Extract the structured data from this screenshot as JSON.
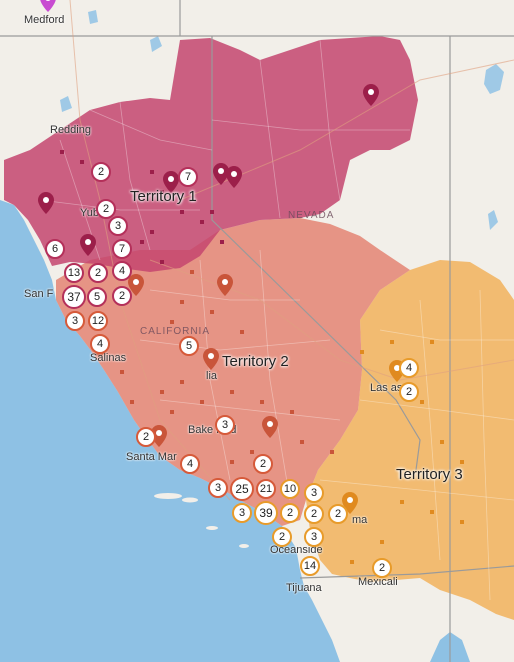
{
  "map": {
    "cities": [
      {
        "id": "medford",
        "label": "Medford"
      },
      {
        "id": "redding",
        "label": "Redding"
      },
      {
        "id": "yuba",
        "label": "Yub"
      },
      {
        "id": "sf",
        "label": "San F"
      },
      {
        "id": "salinas",
        "label": "Salinas"
      },
      {
        "id": "visalia",
        "label": "lia"
      },
      {
        "id": "bakersfield",
        "label": "Bake   field"
      },
      {
        "id": "santamaria",
        "label": "Santa Mar"
      },
      {
        "id": "lasvegas",
        "label": "Las    as"
      },
      {
        "id": "oceanside",
        "label": "Oceanside"
      },
      {
        "id": "tijuana",
        "label": "Tijuana"
      },
      {
        "id": "mexicali",
        "label": "Mexicali"
      },
      {
        "id": "yuma",
        "label": "ma"
      }
    ],
    "states": [
      {
        "id": "nevada",
        "label": "NEVADA"
      },
      {
        "id": "california",
        "label": "CALIFORNIA"
      }
    ],
    "territories": [
      {
        "id": "t1",
        "label": "Territory 1",
        "color": "#c4456f"
      },
      {
        "id": "t2",
        "label": "Territory 2",
        "color": "#e27d6c"
      },
      {
        "id": "t3",
        "label": "Territory 3",
        "color": "#f2b25c"
      }
    ],
    "clusters": [
      {
        "count": "2",
        "t": 1
      },
      {
        "count": "7",
        "t": 1
      },
      {
        "count": "2",
        "t": 1
      },
      {
        "count": "3",
        "t": 1
      },
      {
        "count": "6",
        "t": 1
      },
      {
        "count": "7",
        "t": 1
      },
      {
        "count": "13",
        "t": 1
      },
      {
        "count": "2",
        "t": 1
      },
      {
        "count": "4",
        "t": 1
      },
      {
        "count": "37",
        "t": 1
      },
      {
        "count": "5",
        "t": 1
      },
      {
        "count": "2",
        "t": 1
      },
      {
        "count": "3",
        "t": 2
      },
      {
        "count": "12",
        "t": 2
      },
      {
        "count": "4",
        "t": 2
      },
      {
        "count": "5",
        "t": 2
      },
      {
        "count": "3",
        "t": 2
      },
      {
        "count": "2",
        "t": 2
      },
      {
        "count": "4",
        "t": 2
      },
      {
        "count": "2",
        "t": 2
      },
      {
        "count": "3",
        "t": 2
      },
      {
        "count": "25",
        "t": 2
      },
      {
        "count": "21",
        "t": 2
      },
      {
        "count": "10",
        "t": 3
      },
      {
        "count": "3",
        "t": 3
      },
      {
        "count": "3",
        "t": 3
      },
      {
        "count": "39",
        "t": 3
      },
      {
        "count": "2",
        "t": 3
      },
      {
        "count": "2",
        "t": 3
      },
      {
        "count": "2",
        "t": 3
      },
      {
        "count": "3",
        "t": 3
      },
      {
        "count": "2",
        "t": 3
      },
      {
        "count": "14",
        "t": 3
      },
      {
        "count": "2",
        "t": 3
      },
      {
        "count": "4",
        "t": 3
      },
      {
        "count": "2",
        "t": 3
      }
    ],
    "colors": {
      "land": "#f2efe9",
      "water": "#9fc9e6",
      "ocean": "#8ec1e4",
      "t1_marker": "#9c1f4a",
      "t2_marker": "#c9553a",
      "t3_marker": "#e08a1f",
      "medford_marker": "#c84bd1"
    }
  }
}
